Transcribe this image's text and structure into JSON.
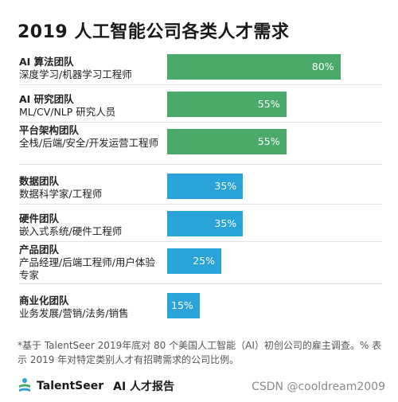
{
  "title": "2019 人工智能公司各类人才需求",
  "colors": {
    "green": "#4aaa6a",
    "blue": "#2aa3d8"
  },
  "chart_data": {
    "type": "bar",
    "orientation": "horizontal",
    "title": "2019 人工智能公司各类人才需求",
    "xlim": [
      0,
      100
    ],
    "value_unit": "%",
    "categories": [
      {
        "name": "AI 算法团队",
        "desc": "深度学习/机器学习工程师",
        "value": 80,
        "label": "80%",
        "color": "green"
      },
      {
        "name": "AI 研究团队",
        "desc": "ML/CV/NLP 研究人员",
        "value": 55,
        "label": "55%",
        "color": "green"
      },
      {
        "name": "平台架构团队",
        "desc": "全栈/后端/安全/开发运营工程师",
        "value": 55,
        "label": "55%",
        "color": "green"
      },
      {
        "name": "数据团队",
        "desc": "数据科学家/工程师",
        "value": 35,
        "label": "35%",
        "color": "blue"
      },
      {
        "name": "硬件团队",
        "desc": "嵌入式系统/硬件工程师",
        "value": 35,
        "label": "35%",
        "color": "blue"
      },
      {
        "name": "产品团队",
        "desc": "产品经理/后端工程师/用户体验专家",
        "value": 25,
        "label": "25%",
        "color": "blue"
      },
      {
        "name": "商业化团队",
        "desc": "业务发展/营销/法务/销售",
        "value": 15,
        "label": "15%",
        "color": "blue"
      }
    ]
  },
  "footnote": "*基于 TalentSeer 2019年底对 80 个美国人工智能（AI）初创公司的雇主调查。% 表示 2019 年对特定类别人才有招聘需求的公司比例。",
  "brand": {
    "name": "TalentSeer",
    "subtitle": "AI 人才报告"
  },
  "watermark": "CSDN @cooldream2009"
}
